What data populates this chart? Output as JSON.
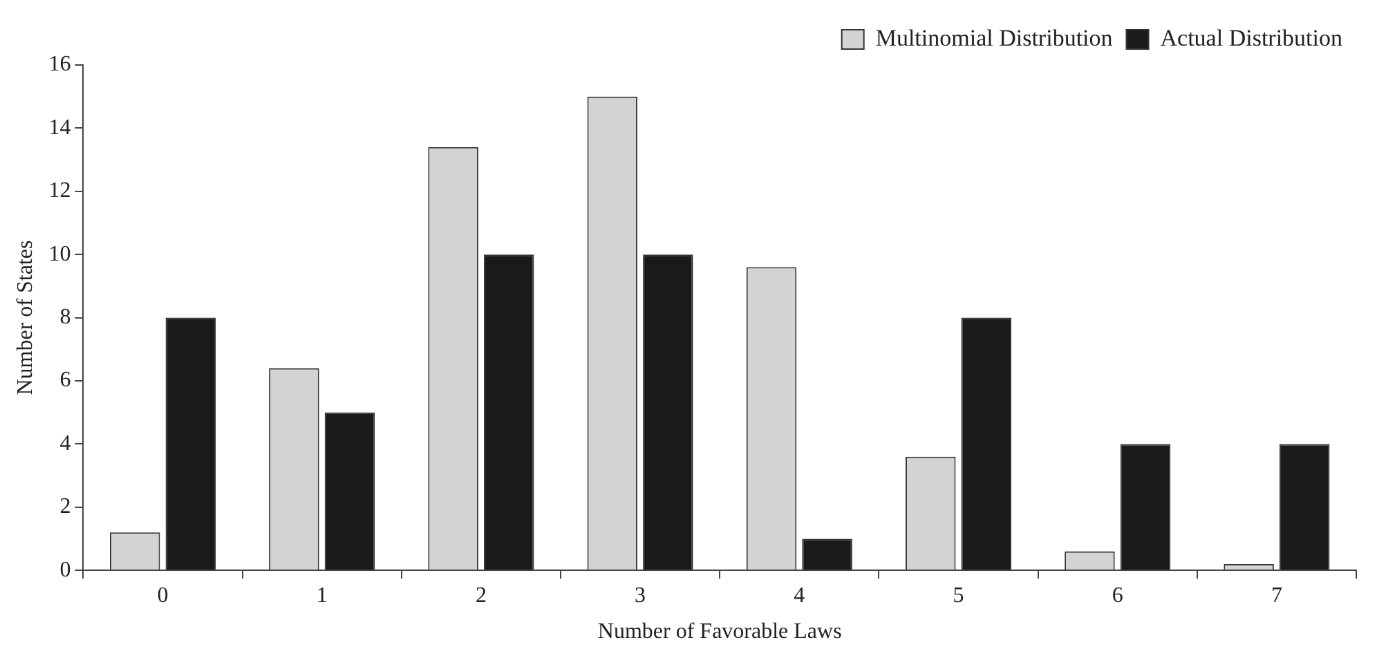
{
  "chart_data": {
    "type": "bar",
    "xlabel": "Number of Favorable Laws",
    "ylabel": "Number of States",
    "categories": [
      "0",
      "1",
      "2",
      "3",
      "4",
      "5",
      "6",
      "7"
    ],
    "series": [
      {
        "name": "Multinomial Distribution",
        "color": "#d3d3d3",
        "values": [
          1.2,
          6.4,
          13.4,
          15.0,
          9.6,
          3.6,
          0.6,
          0.2
        ]
      },
      {
        "name": "Actual Distribution",
        "color": "#1a1a1a",
        "values": [
          8,
          5,
          10,
          10,
          1,
          8,
          4,
          4
        ]
      }
    ],
    "ylim": [
      0,
      16
    ],
    "yticks": [
      0,
      2,
      4,
      6,
      8,
      10,
      12,
      14,
      16
    ],
    "grid": false,
    "legend": "top right"
  }
}
